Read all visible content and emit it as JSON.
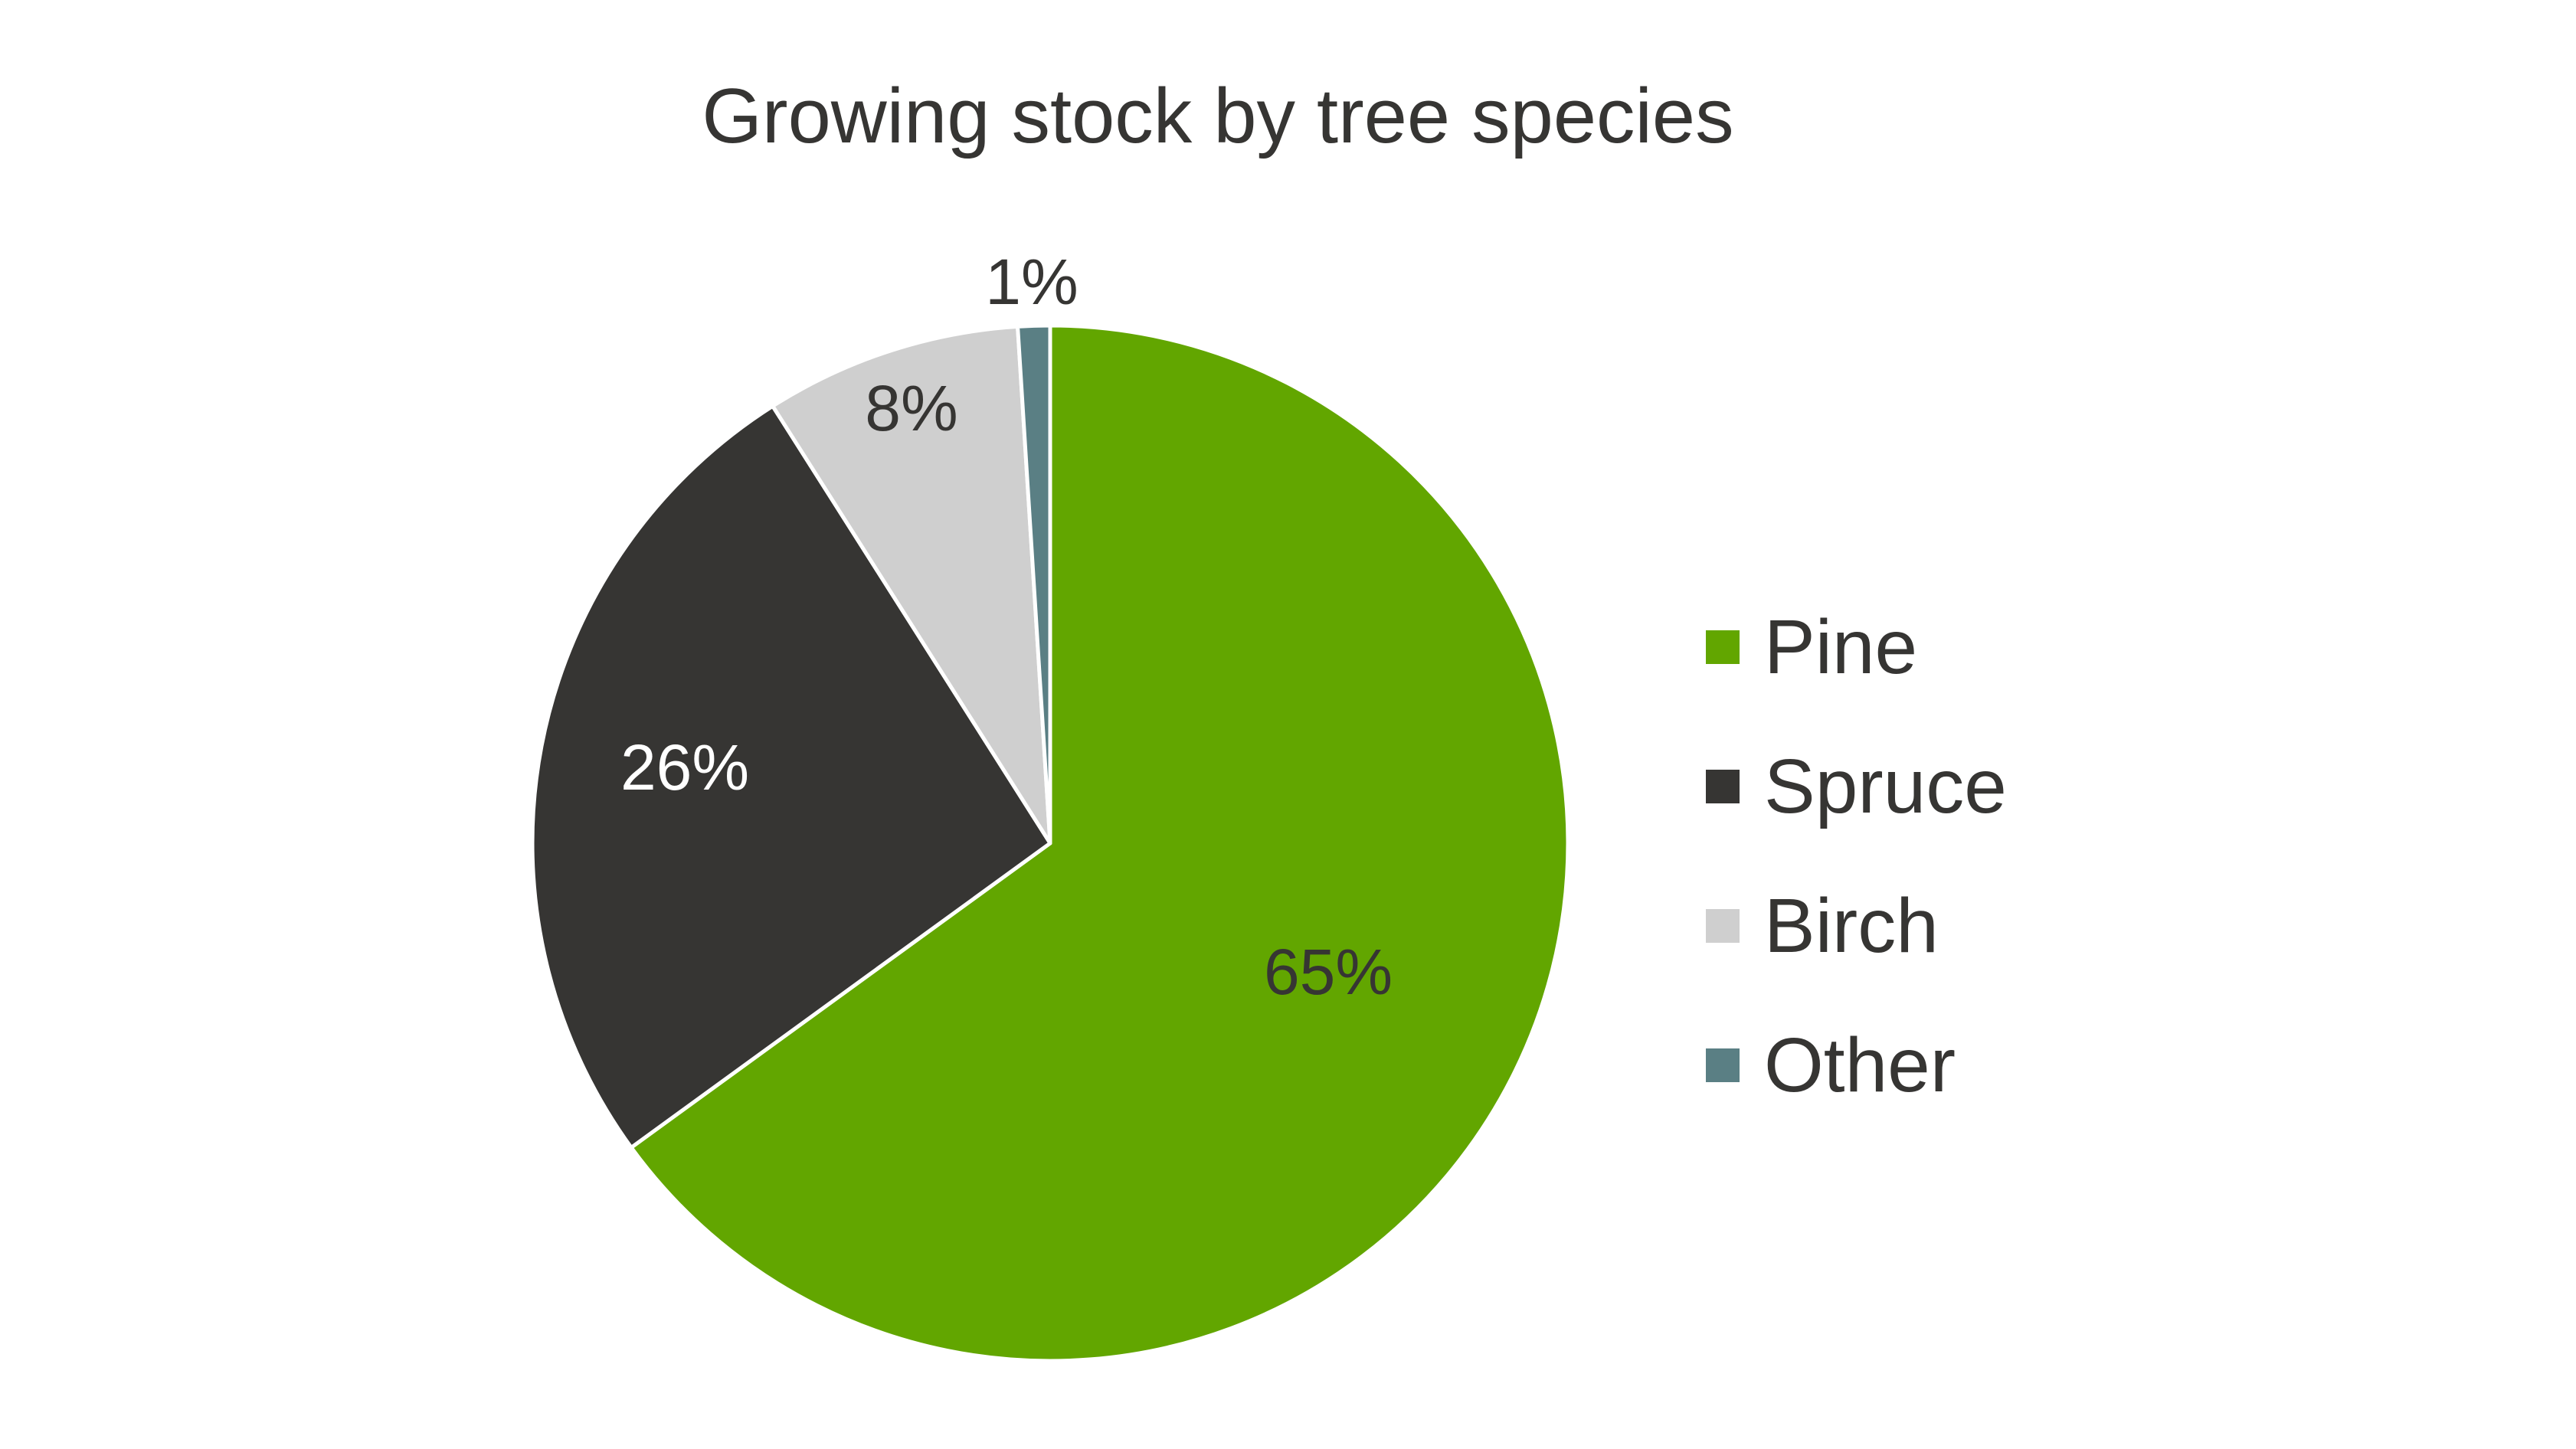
{
  "chart_data": {
    "type": "pie",
    "title": "Growing stock by tree species",
    "categories": [
      "Pine",
      "Spruce",
      "Birch",
      "Other"
    ],
    "values": [
      65,
      26,
      8,
      1
    ],
    "unit": "%",
    "data_labels": [
      "65%",
      "26%",
      "8%",
      "1%"
    ],
    "colors": [
      "#62A600",
      "#363533",
      "#CFCFCF",
      "#5A7F84"
    ],
    "start_angle": 0,
    "direction": "clockwise",
    "legend": {
      "position": "right",
      "entries": [
        "Pine",
        "Spruce",
        "Birch",
        "Other"
      ]
    },
    "grid": false
  },
  "title": "Growing stock by tree species",
  "labels": {
    "pine": "65%",
    "spruce": "26%",
    "birch": "8%",
    "other": "1%"
  },
  "legend": {
    "items": [
      {
        "label": "Pine",
        "color": "#62A600"
      },
      {
        "label": "Spruce",
        "color": "#363533"
      },
      {
        "label": "Birch",
        "color": "#CFCFCF"
      },
      {
        "label": "Other",
        "color": "#5A7F84"
      }
    ]
  },
  "colors": {
    "text": "#363533",
    "label_on_dark": "#FFFFFF",
    "background": "#FFFFFF"
  }
}
